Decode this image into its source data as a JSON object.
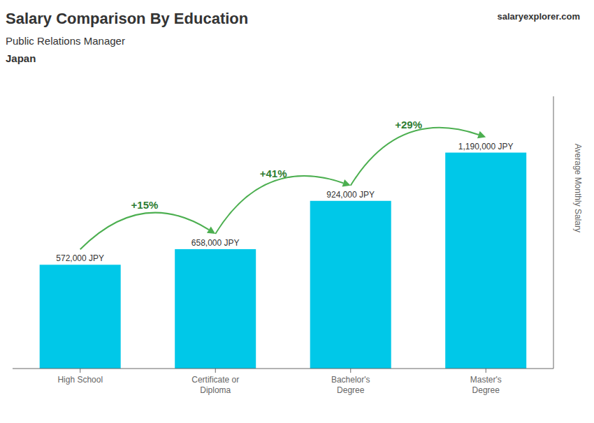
{
  "chart_data": {
    "type": "bar",
    "title": "Salary Comparison By Education",
    "subtitle": "Public Relations Manager",
    "ylabel": "Average Monthly Salary",
    "categories": [
      "High School",
      "Certificate or\nDiploma",
      "Bachelor's\nDegree",
      "Master's\nDegree"
    ],
    "values": [
      572000,
      658000,
      924000,
      1190000
    ],
    "value_labels": [
      "572,000 JPY",
      "658,000 JPY",
      "924,000 JPY",
      "1,190,000 JPY"
    ],
    "data_labels": true,
    "color": "#00c8e8",
    "ylim": [
      0,
      1500000
    ],
    "tick_labels": "x",
    "grid": false,
    "annotations": [
      {
        "text": "Japan"
      },
      {
        "text": "salaryexplorer.com"
      },
      {
        "text": "+15%",
        "from": "High School",
        "to": "Certificate or\nDiploma"
      },
      {
        "text": "+41%",
        "from": "Certificate or\nDiploma",
        "to": "Bachelor's\nDegree"
      },
      {
        "text": "+29%",
        "from": "Bachelor's\nDegree",
        "to": "Master's\nDegree"
      }
    ]
  }
}
